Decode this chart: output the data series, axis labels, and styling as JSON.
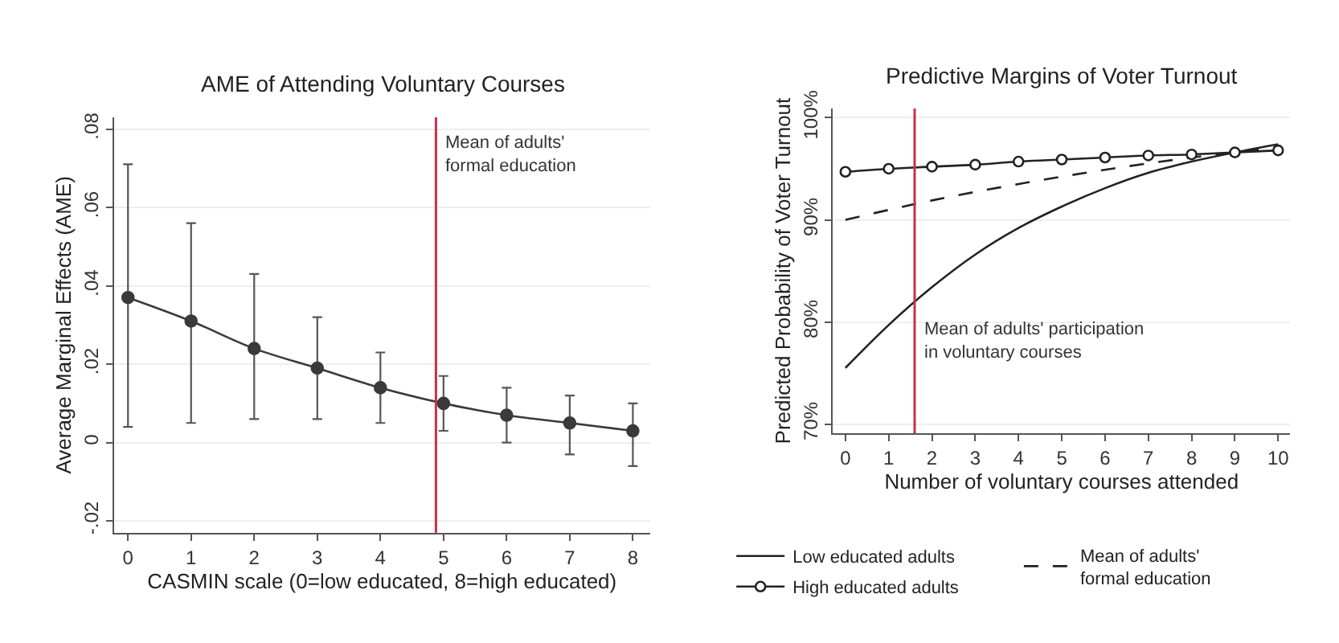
{
  "chart_data": [
    {
      "type": "line",
      "title": "AME of Attending Voluntary Courses",
      "xlabel": "CASMIN scale (0=low educated, 8=high educated)",
      "ylabel": "Average Marginal Effects (AME)",
      "x": [
        0,
        1,
        2,
        3,
        4,
        5,
        6,
        7,
        8
      ],
      "series": [
        {
          "color": "#3a3a3a",
          "values": [
            0.037,
            0.031,
            0.024,
            0.019,
            0.014,
            0.01,
            0.007,
            0.005,
            0.003
          ],
          "errors": [
            [
              0.004,
              0.071
            ],
            [
              0.005,
              0.056
            ],
            [
              0.006,
              0.043
            ],
            [
              0.006,
              0.032
            ],
            [
              0.005,
              0.023
            ],
            [
              0.003,
              0.017
            ],
            [
              0.0,
              0.014
            ],
            [
              -0.003,
              0.012
            ],
            [
              -0.006,
              0.01
            ]
          ]
        }
      ],
      "marker": "circle",
      "xlim": [
        -0.22,
        8.27
      ],
      "xticks": [
        0,
        1,
        2,
        3,
        4,
        5,
        6,
        7,
        8
      ],
      "ylim": [
        -0.023,
        0.083
      ],
      "yticks": [
        {
          "value": -0.02,
          "label": "-.02"
        },
        0,
        {
          "value": 0.02,
          "label": ".02"
        },
        {
          "value": 0.04,
          "label": ".04"
        },
        {
          "value": 0.06,
          "label": ".06"
        },
        {
          "value": 0.08,
          "label": ".08"
        }
      ],
      "ref_lines": [
        {
          "axis": "x",
          "value": 4.88,
          "label": "Mean of adults'\nformal education",
          "color": "#c8304a"
        }
      ],
      "grid": "y",
      "legend": false
    },
    {
      "type": "line",
      "title": "Predictive Margins of Voter Turnout",
      "xlabel": "Number of voluntary courses attended",
      "ylabel": "Predicted Probability of Voter Turnout",
      "series": [
        {
          "name": "Low educated adults",
          "color": "#222222",
          "x": [
            0,
            1,
            2,
            3,
            4,
            5,
            6,
            7,
            8,
            9,
            10
          ],
          "values": [
            75.5,
            79.7,
            83.4,
            86.6,
            89.2,
            91.3,
            93.1,
            94.6,
            95.7,
            96.6,
            97.4
          ],
          "marker": "none",
          "line_style": "solid"
        },
        {
          "name": "Mean of adults'\nformal education",
          "color": "#222222",
          "x": [
            0,
            2,
            4,
            6,
            8,
            10
          ],
          "values": [
            90.0,
            91.9,
            93.5,
            94.9,
            96.1,
            97.1
          ],
          "marker": "none",
          "line_style": "dashed"
        },
        {
          "name": "High educated adults",
          "color": "#222222",
          "x": [
            0,
            1,
            2,
            3,
            4,
            5,
            6,
            7,
            8,
            9,
            10
          ],
          "values": [
            94.7,
            95.0,
            95.2,
            95.4,
            95.7,
            95.9,
            96.1,
            96.3,
            96.4,
            96.6,
            96.8
          ],
          "marker": "circle",
          "line_style": "solid"
        }
      ],
      "xlim": [
        -0.29,
        10.28
      ],
      "xticks": [
        0,
        1,
        2,
        3,
        4,
        5,
        6,
        7,
        8,
        9,
        10
      ],
      "ylim": [
        69.1,
        100.9
      ],
      "yticks": [
        {
          "value": 70,
          "label": "70%"
        },
        {
          "value": 80,
          "label": "80%"
        },
        {
          "value": 90,
          "label": "90%"
        },
        {
          "value": 100,
          "label": "100%"
        }
      ],
      "ref_lines": [
        {
          "axis": "x",
          "value": 1.6,
          "label": "Mean of adults' participation\nin voluntary courses",
          "color": "#c8304a"
        }
      ],
      "grid": "y",
      "legend": "bottom"
    }
  ]
}
